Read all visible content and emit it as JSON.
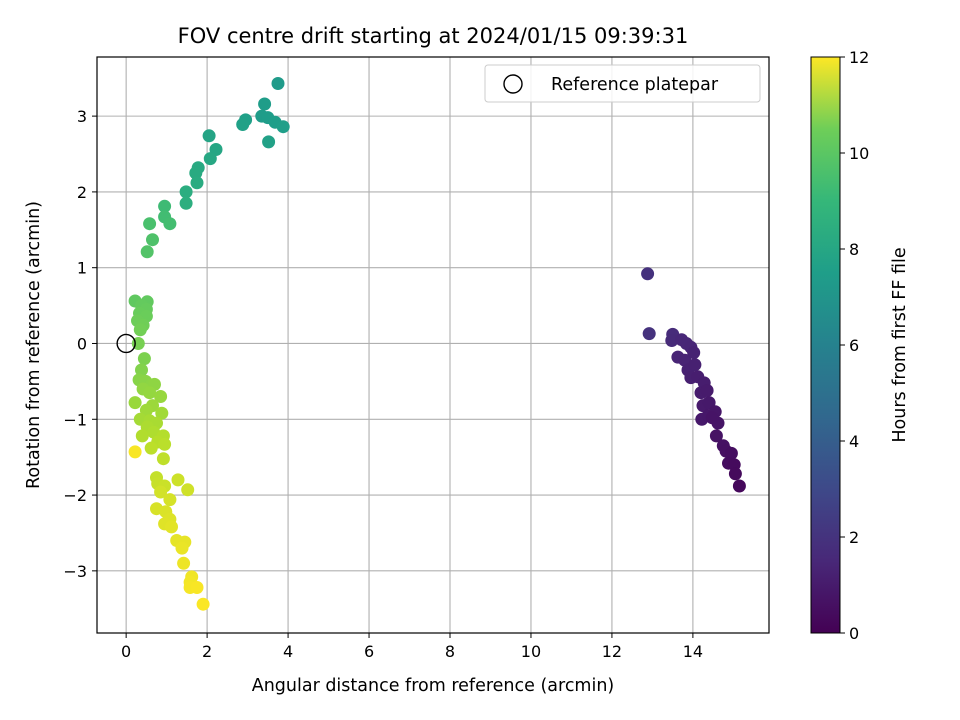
{
  "chart_data": {
    "type": "scatter",
    "title": "FOV centre drift starting at 2024/01/15 09:39:31",
    "xlabel": "Angular distance from reference (arcmin)",
    "ylabel": "Rotation from reference (arcmin)",
    "xlim": [
      -0.72,
      15.88
    ],
    "ylim": [
      -3.82,
      3.78
    ],
    "xticks": [
      0,
      2,
      4,
      6,
      8,
      10,
      12,
      14
    ],
    "yticks": [
      -3,
      -2,
      -1,
      0,
      1,
      2,
      3
    ],
    "grid": true,
    "legend": {
      "placement": "top-right",
      "label": "Reference platepar"
    },
    "reference": {
      "x": 0,
      "y": 0
    },
    "colorbar": {
      "label": "Hours from first FF file",
      "min": 0,
      "max": 12,
      "ticks": [
        0,
        2,
        4,
        6,
        8,
        10,
        12
      ],
      "colormap": "viridis"
    },
    "series": [
      {
        "points": [
          [
            12.88,
            0.92,
            1.7
          ],
          [
            12.92,
            0.13,
            1.72
          ],
          [
            13.5,
            0.12,
            1.5
          ],
          [
            13.48,
            0.04,
            1.45
          ],
          [
            13.72,
            0.05,
            1.35
          ],
          [
            13.84,
            0.0,
            1.3
          ],
          [
            13.95,
            -0.05,
            1.25
          ],
          [
            13.63,
            -0.18,
            1.22
          ],
          [
            13.8,
            -0.22,
            1.18
          ],
          [
            14.02,
            -0.12,
            1.15
          ],
          [
            13.88,
            -0.35,
            1.1
          ],
          [
            14.05,
            -0.28,
            1.08
          ],
          [
            13.95,
            -0.45,
            1.05
          ],
          [
            14.12,
            -0.44,
            1.0
          ],
          [
            14.28,
            -0.52,
            0.95
          ],
          [
            14.2,
            -0.65,
            0.92
          ],
          [
            14.35,
            -0.62,
            0.88
          ],
          [
            14.25,
            -0.82,
            0.85
          ],
          [
            14.4,
            -0.78,
            0.82
          ],
          [
            14.22,
            -1.0,
            0.8
          ],
          [
            14.38,
            -0.95,
            0.76
          ],
          [
            14.55,
            -0.9,
            0.72
          ],
          [
            14.62,
            -1.05,
            0.68
          ],
          [
            14.48,
            -0.98,
            0.65
          ],
          [
            14.58,
            -1.22,
            0.6
          ],
          [
            14.75,
            -1.35,
            0.55
          ],
          [
            14.82,
            -1.42,
            0.5
          ],
          [
            14.95,
            -1.45,
            0.45
          ],
          [
            14.88,
            -1.58,
            0.4
          ],
          [
            15.02,
            -1.6,
            0.35
          ],
          [
            15.05,
            -1.72,
            0.3
          ],
          [
            15.15,
            -1.88,
            0.25
          ]
        ]
      },
      {
        "points": [
          [
            3.75,
            3.43,
            6.5
          ],
          [
            3.42,
            3.16,
            6.6
          ],
          [
            3.35,
            3.0,
            6.55
          ],
          [
            3.5,
            2.98,
            6.62
          ],
          [
            3.68,
            2.92,
            6.65
          ],
          [
            3.88,
            2.86,
            6.7
          ],
          [
            2.95,
            2.95,
            6.75
          ],
          [
            2.88,
            2.89,
            6.8
          ],
          [
            3.52,
            2.66,
            6.85
          ],
          [
            2.05,
            2.74,
            7.0
          ],
          [
            2.22,
            2.56,
            7.1
          ],
          [
            2.08,
            2.44,
            7.15
          ],
          [
            1.78,
            2.32,
            7.25
          ],
          [
            1.72,
            2.25,
            7.3
          ],
          [
            1.75,
            2.12,
            7.35
          ],
          [
            1.48,
            2.0,
            7.45
          ],
          [
            1.48,
            1.85,
            7.5
          ],
          [
            0.95,
            1.81,
            8.2
          ],
          [
            0.95,
            1.67,
            8.3
          ],
          [
            1.08,
            1.58,
            8.35
          ],
          [
            0.58,
            1.58,
            8.5
          ],
          [
            0.65,
            1.37,
            8.6
          ],
          [
            0.52,
            1.21,
            8.7
          ]
        ]
      },
      {
        "points": [
          [
            0.22,
            0.56,
            9.0
          ],
          [
            0.52,
            0.55,
            9.05
          ],
          [
            0.38,
            0.5,
            9.1
          ],
          [
            0.5,
            0.45,
            9.15
          ],
          [
            0.33,
            0.4,
            9.2
          ],
          [
            0.5,
            0.36,
            9.25
          ],
          [
            0.28,
            0.3,
            9.3
          ],
          [
            0.42,
            0.24,
            9.35
          ],
          [
            0.35,
            0.18,
            9.4
          ],
          [
            0.3,
            0.0,
            9.5
          ],
          [
            0.45,
            -0.2,
            9.6
          ],
          [
            0.38,
            -0.35,
            9.7
          ],
          [
            0.32,
            -0.48,
            9.8
          ],
          [
            0.48,
            -0.5,
            9.85
          ],
          [
            0.62,
            -0.55,
            9.9
          ],
          [
            0.7,
            -0.54,
            9.95
          ],
          [
            0.42,
            -0.6,
            10.0
          ],
          [
            0.58,
            -0.65,
            10.05
          ],
          [
            0.85,
            -0.7,
            10.1
          ],
          [
            0.22,
            -0.78,
            10.15
          ],
          [
            0.65,
            -0.82,
            10.2
          ],
          [
            0.5,
            -0.88,
            10.25
          ],
          [
            0.88,
            -0.92,
            10.3
          ],
          [
            0.35,
            -1.0,
            10.35
          ],
          [
            0.58,
            -1.02,
            10.4
          ],
          [
            0.75,
            -1.05,
            10.45
          ],
          [
            0.52,
            -1.1,
            10.5
          ],
          [
            0.68,
            -1.17,
            10.55
          ],
          [
            0.4,
            -1.22,
            10.6
          ],
          [
            0.92,
            -1.22,
            10.65
          ],
          [
            0.78,
            -1.3,
            10.7
          ],
          [
            0.95,
            -1.33,
            10.75
          ],
          [
            0.62,
            -1.38,
            10.8
          ],
          [
            0.92,
            -1.52,
            10.85
          ],
          [
            0.22,
            -1.43,
            11.9
          ],
          [
            0.75,
            -1.77,
            10.95
          ],
          [
            0.78,
            -1.85,
            11.0
          ],
          [
            0.95,
            -1.88,
            11.05
          ],
          [
            1.28,
            -1.8,
            11.1
          ],
          [
            1.52,
            -1.93,
            11.15
          ],
          [
            0.85,
            -1.96,
            11.2
          ],
          [
            1.08,
            -2.06,
            11.25
          ],
          [
            0.75,
            -2.18,
            11.3
          ],
          [
            0.98,
            -2.22,
            11.35
          ],
          [
            1.08,
            -2.32,
            11.4
          ],
          [
            0.95,
            -2.38,
            11.45
          ],
          [
            1.12,
            -2.42,
            11.5
          ],
          [
            1.25,
            -2.6,
            11.55
          ],
          [
            1.45,
            -2.62,
            11.6
          ],
          [
            1.38,
            -2.7,
            11.65
          ],
          [
            1.42,
            -2.9,
            11.7
          ],
          [
            1.62,
            -3.08,
            11.75
          ],
          [
            1.58,
            -3.15,
            11.8
          ],
          [
            1.58,
            -3.22,
            11.85
          ],
          [
            1.75,
            -3.22,
            11.9
          ],
          [
            1.9,
            -3.44,
            11.95
          ]
        ]
      }
    ]
  }
}
